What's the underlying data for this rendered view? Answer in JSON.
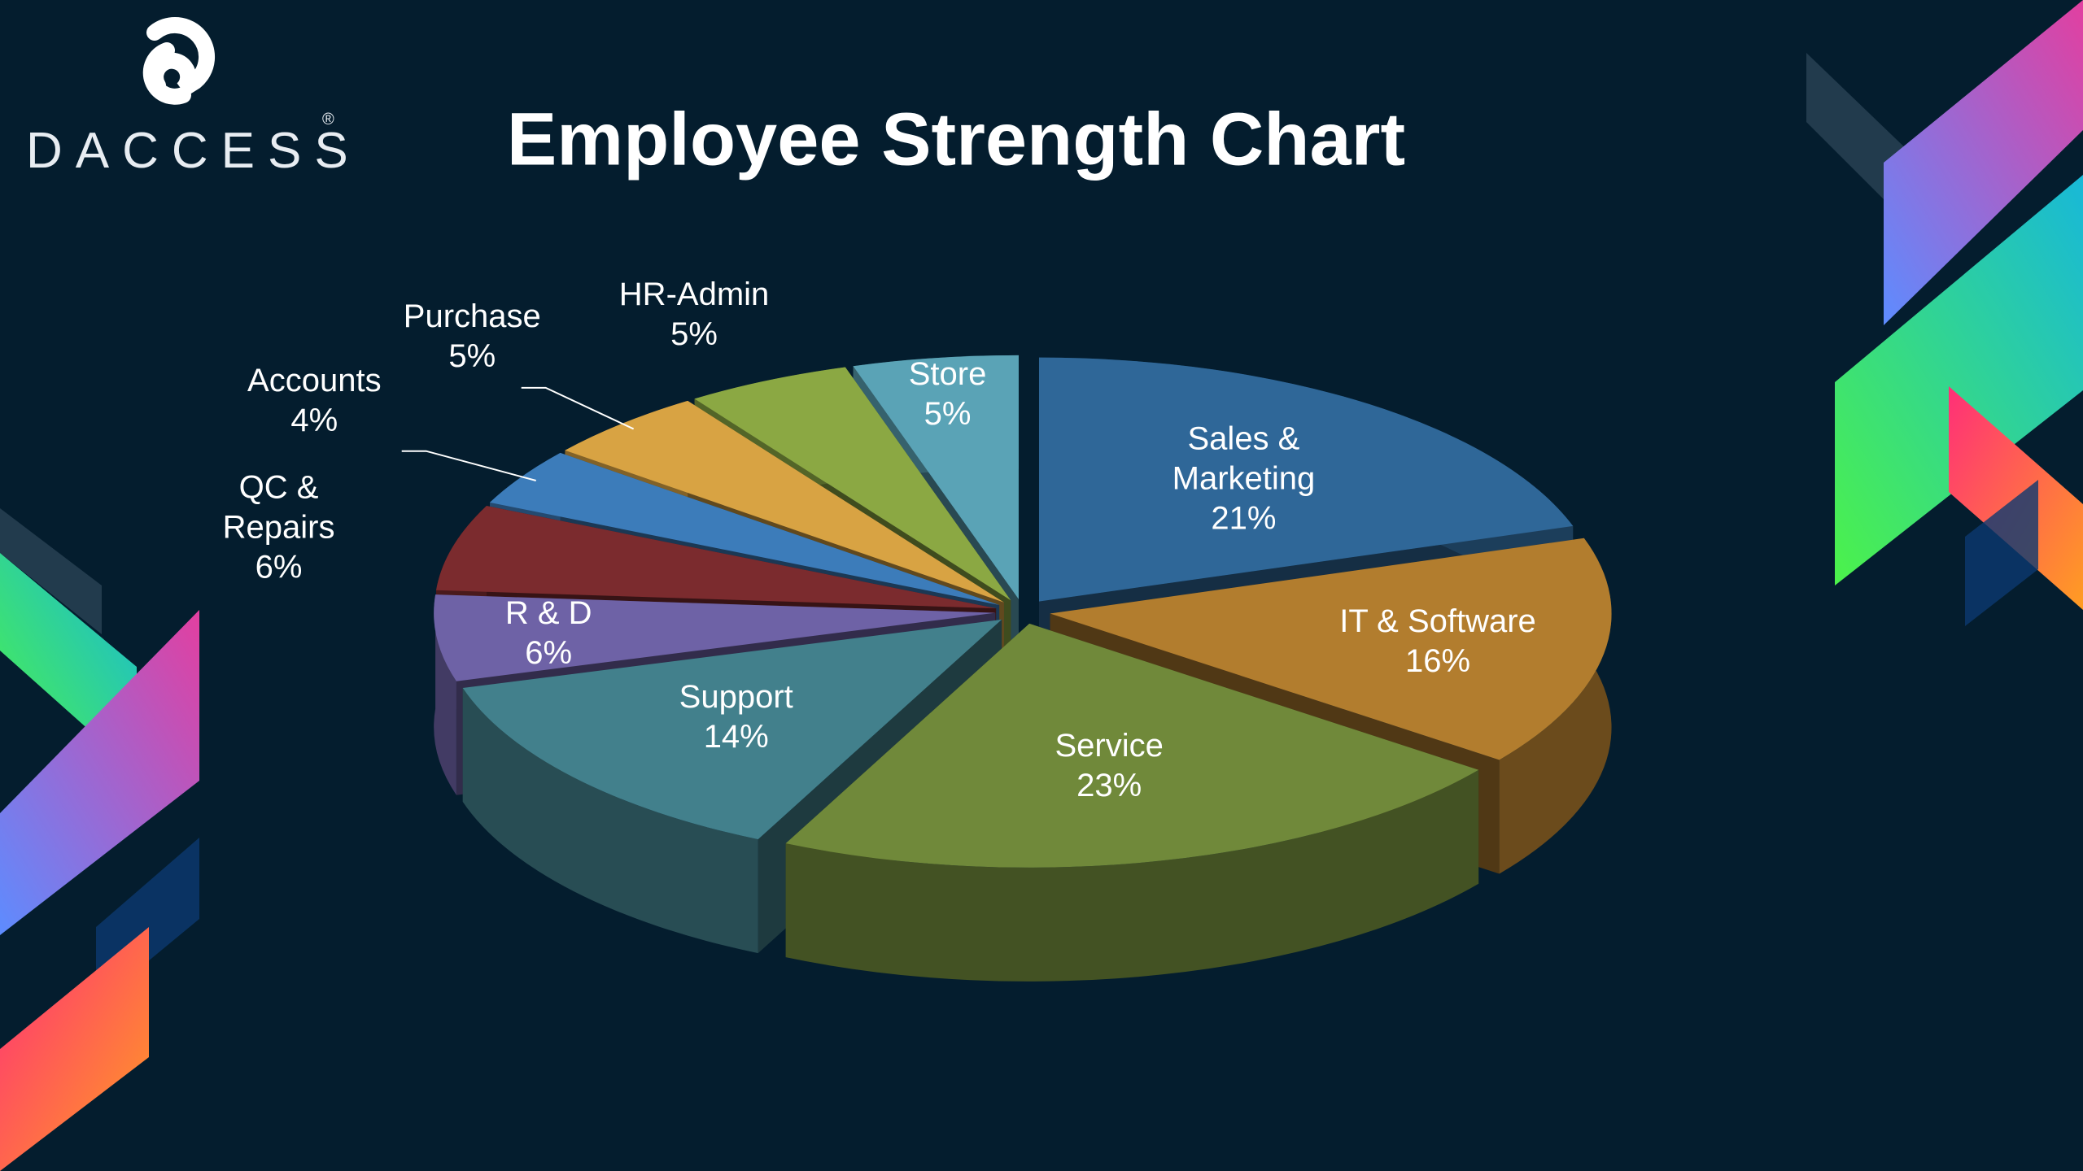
{
  "brand": {
    "name": "DACCESS",
    "mark": "®"
  },
  "chart_data": {
    "type": "pie",
    "title": "Employee Strength Chart",
    "categories": [
      "Sales & Marketing",
      "IT & Software",
      "Service",
      "Support",
      "R & D",
      "QC & Repairs",
      "Accounts",
      "Purchase",
      "HR-Admin",
      "Store"
    ],
    "values": [
      21,
      16,
      23,
      14,
      6,
      6,
      4,
      5,
      5,
      5
    ],
    "value_labels": [
      "21%",
      "16%",
      "23%",
      "14%",
      "6%",
      "6%",
      "4%",
      "5%",
      "5%",
      "5%"
    ],
    "colors": [
      "#2f6798",
      "#b27d2e",
      "#70893a",
      "#42808c",
      "#6e62a6",
      "#7b2b2e",
      "#3c7cba",
      "#d8a343",
      "#8ba843",
      "#5aa3b6"
    ]
  }
}
